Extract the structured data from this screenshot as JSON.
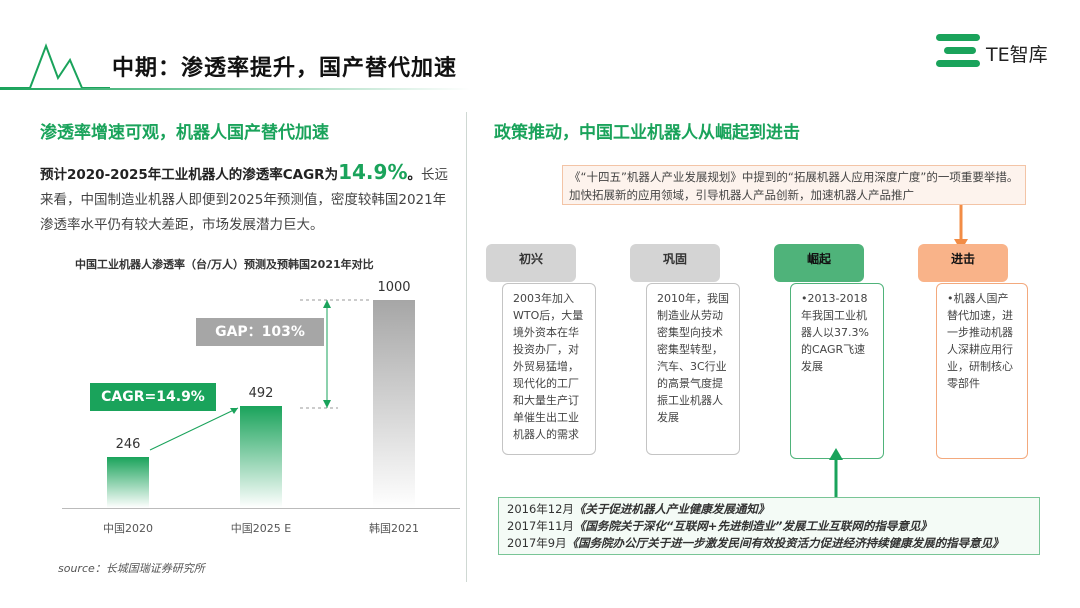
{
  "header": {
    "title": "中期：渗透率提升，国产替代加速",
    "brand": "TE智库"
  },
  "left": {
    "section_title": "渗透率增速可观，机器人国产替代加速",
    "para_bold": "预计2020-2025年工业机器人的渗透率CAGR为",
    "para_highlight": "14.9%",
    "para_period": "。",
    "para_rest": "长远来看，中国制造业机器人即便到2025年预测值，密度较韩国2021年渗透率水平仍有较大差距，市场发展潜力巨大。",
    "source": "source：长城国瑞证券研究所"
  },
  "chart_data": {
    "type": "bar",
    "title": "中国工业机器人渗透率（台/万人）预测及预韩国2021年对比",
    "categories": [
      "中国2020",
      "中国2025 E",
      "韩国2021"
    ],
    "values": [
      246,
      492,
      1000
    ],
    "value_labels": [
      "246",
      "492",
      "1000"
    ],
    "colors": [
      "#1aa35b",
      "#1aa35b",
      "#a6a6a6"
    ],
    "annotations": {
      "cagr": "CAGR=14.9%",
      "gap": "GAP：103%"
    },
    "ylim": [
      0,
      1000
    ]
  },
  "right": {
    "section_title": "政策推动，中国工业机器人从崛起到进击",
    "policy_top": "《“十四五”机器人产业发展规划》中提到的“拓展机器人应用深度广度”的一项重要举措。加快拓展新的应用领域，引导机器人产品创新，加速机器人产品推广",
    "stages": [
      {
        "title": "初兴",
        "text": "2003年加入WTO后，大量境外资本在华投资办厂，对外贸易猛增，现代化的工厂和大量生产订单催生出工业机器人的需求"
      },
      {
        "title": "巩固",
        "text": "2010年，我国制造业从劳动密集型向技术密集型转型，汽车、3C行业的高景气度提振工业机器人发展"
      },
      {
        "title": "崛起",
        "text": "•2013-2018年我国工业机器人以37.3%的CAGR飞速发展"
      },
      {
        "title": "进击",
        "text": "•机器人国产替代加速，进一步推动机器人深耕应用行业，研制核心零部件"
      }
    ],
    "policies": [
      {
        "date": "2016年12月",
        "name": "《关于促进机器人产业健康发展通知》"
      },
      {
        "date": "2017年11月",
        "name": "《国务院关于深化“互联网+先进制造业”发展工业互联网的指导意见》"
      },
      {
        "date": "2017年9月",
        "name": "《国务院办公厅关于进一步激发民间有效投资活力促进经济持续健康发展的指导意见》"
      }
    ]
  }
}
